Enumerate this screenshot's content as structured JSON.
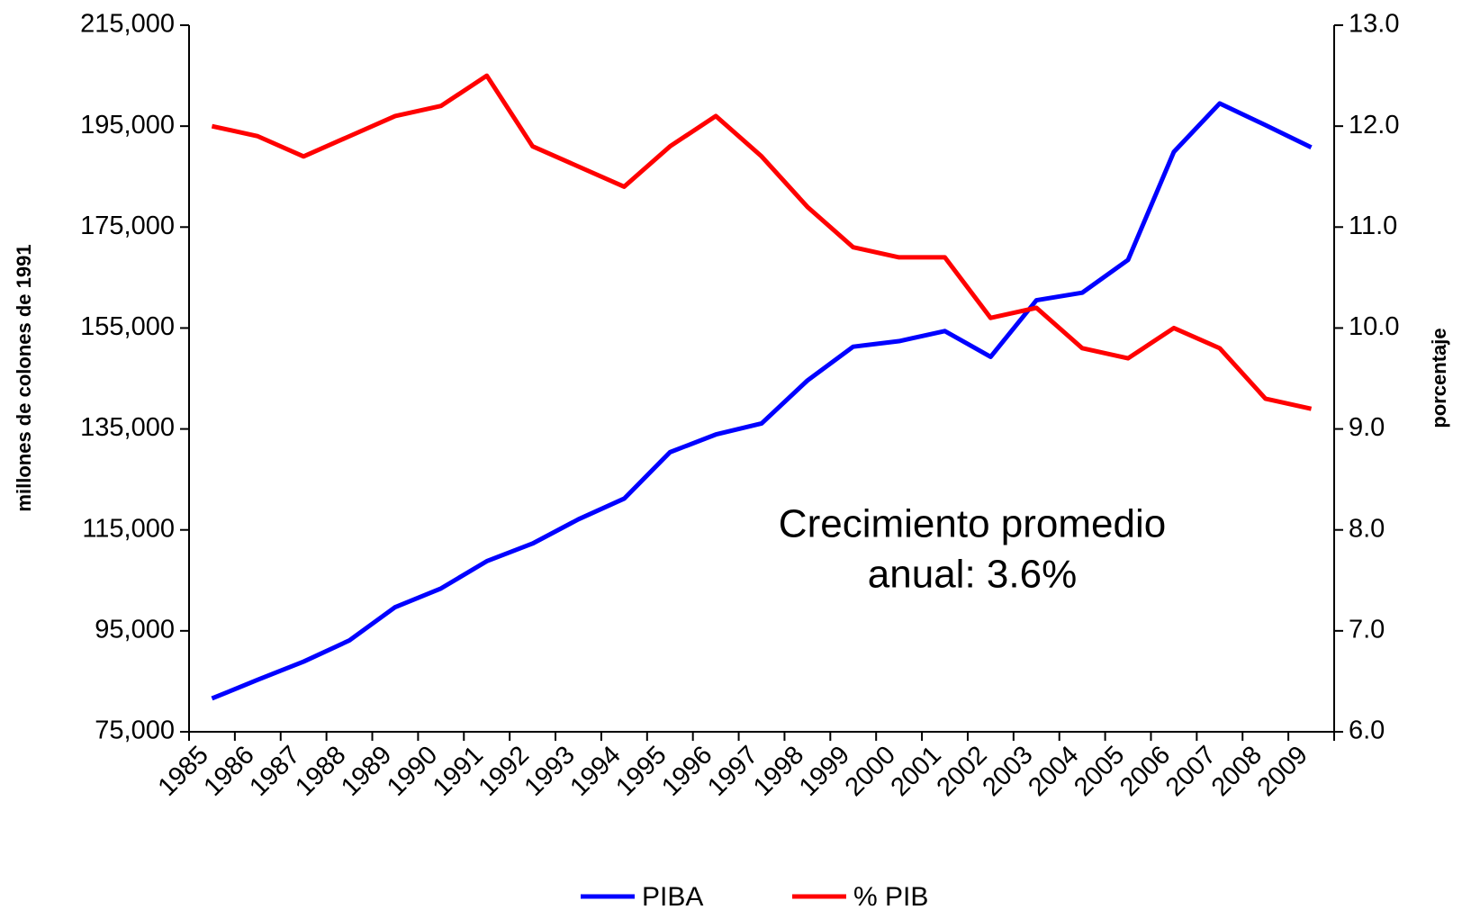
{
  "chart_data": {
    "type": "line",
    "y_label": "millones de colones de 1991",
    "y2_label": "porcentaje",
    "annotation": [
      "Crecimiento promedio",
      "anual: 3.6%"
    ],
    "categories": [
      "1985",
      "1986",
      "1987",
      "1988",
      "1989",
      "1990",
      "1991",
      "1992",
      "1993",
      "1994",
      "1995",
      "1996",
      "1997",
      "1998",
      "1999",
      "2000",
      "2001",
      "2002",
      "2003",
      "2004",
      "2005",
      "2006",
      "2007",
      "2008",
      "2009"
    ],
    "series": [
      {
        "name": "PIBA",
        "color": "#0000ff",
        "values": [
          81600,
          85300,
          88900,
          93100,
          99700,
          103400,
          108800,
          112300,
          117100,
          121200,
          130400,
          133900,
          136100,
          144600,
          151300,
          152400,
          154400,
          149300,
          160500,
          162000,
          168500,
          189900,
          199500,
          195200,
          190800
        ]
      },
      {
        "name": "% PIB",
        "color": "#ff0000",
        "axis": "y2",
        "values": [
          12.0,
          11.9,
          11.7,
          11.9,
          12.1,
          12.2,
          12.5,
          11.8,
          11.6,
          11.4,
          11.8,
          12.1,
          11.7,
          11.2,
          10.8,
          10.7,
          10.7,
          10.1,
          10.2,
          9.8,
          9.7,
          10.0,
          9.8,
          9.3,
          9.2
        ]
      }
    ],
    "ylim": [
      75000,
      215000
    ],
    "yticks": [
      {
        "value": 75000,
        "label": "75,000"
      },
      {
        "value": 95000,
        "label": "95,000"
      },
      {
        "value": 115000,
        "label": "115,000"
      },
      {
        "value": 135000,
        "label": "135,000"
      },
      {
        "value": 155000,
        "label": "155,000"
      },
      {
        "value": 175000,
        "label": "175,000"
      },
      {
        "value": 195000,
        "label": "195,000"
      },
      {
        "value": 215000,
        "label": "215,000"
      }
    ],
    "y2lim": [
      6,
      13
    ],
    "y2ticks": [
      {
        "value": 6,
        "label": "6.0"
      },
      {
        "value": 7,
        "label": "7.0"
      },
      {
        "value": 8,
        "label": "8.0"
      },
      {
        "value": 9,
        "label": "9.0"
      },
      {
        "value": 10,
        "label": "10.0"
      },
      {
        "value": 11,
        "label": "11.0"
      },
      {
        "value": 12,
        "label": "12.0"
      },
      {
        "value": 13,
        "label": "13.0"
      }
    ],
    "grid": false,
    "legend": "bottom"
  }
}
